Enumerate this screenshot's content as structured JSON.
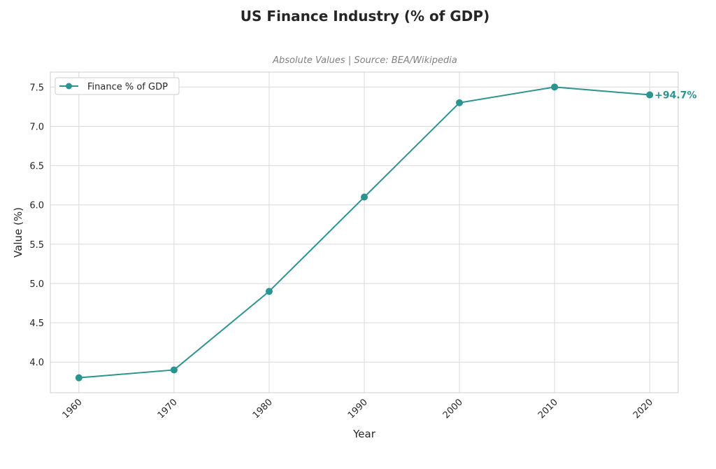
{
  "chart_data": {
    "type": "line",
    "title": "US Finance Industry (% of GDP)",
    "subtitle": "Absolute Values | Source: BEA/Wikipedia",
    "xlabel": "Year",
    "ylabel": "Value (%)",
    "x": [
      1960,
      1970,
      1980,
      1990,
      2000,
      2010,
      2020
    ],
    "series": [
      {
        "name": "Finance % of GDP",
        "color": "#2a9490",
        "values": [
          3.8,
          3.9,
          4.9,
          6.1,
          7.3,
          7.5,
          7.4
        ]
      }
    ],
    "yticks": [
      4.0,
      4.5,
      5.0,
      5.5,
      6.0,
      6.5,
      7.0,
      7.5
    ],
    "ytick_labels": [
      "4.0",
      "4.5",
      "5.0",
      "5.5",
      "6.0",
      "6.5",
      "7.0",
      "7.5"
    ],
    "xtick_labels": [
      "1960",
      "1970",
      "1980",
      "1990",
      "2000",
      "2010",
      "2020"
    ],
    "ylim": [
      3.61,
      7.69
    ],
    "xlim": [
      1957,
      2023
    ],
    "grid": true,
    "legend": "top-left",
    "annotation": {
      "text": "+94.7%",
      "x": 2020,
      "y": 7.4
    }
  }
}
